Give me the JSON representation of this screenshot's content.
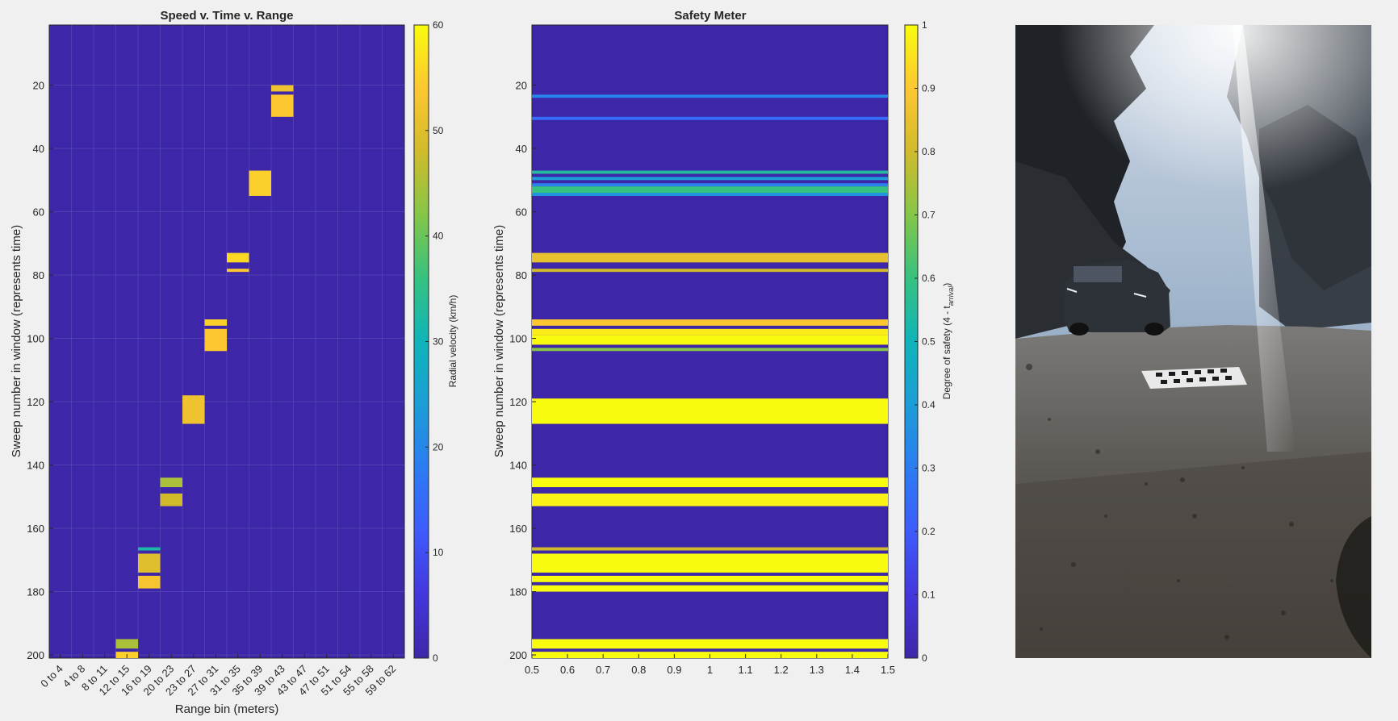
{
  "chart_data": [
    {
      "type": "heatmap",
      "title": "Speed v. Time v. Range",
      "xlabel": "Range bin (meters)",
      "ylabel": "Sweep number in window (represents time)",
      "x_categories": [
        "0 to 4",
        "4 to 8",
        "8 to 11",
        "12 to 15",
        "16 to 19",
        "20 to 23",
        "23 to 27",
        "27 to 31",
        "31 to 35",
        "35 to 39",
        "39 to 43",
        "43 to 47",
        "47 to 51",
        "51 to 54",
        "55 to 58",
        "59 to 62"
      ],
      "ylim": [
        1,
        201
      ],
      "y_ticks": [
        20,
        40,
        60,
        80,
        100,
        120,
        140,
        160,
        180,
        200
      ],
      "y_direction": "reversed",
      "grid": true,
      "colorbar": {
        "label": "Radial velocity (km/h)",
        "range": [
          0,
          60
        ],
        "ticks": [
          0,
          10,
          20,
          30,
          40,
          50,
          60
        ]
      },
      "background_value": 0,
      "cells": [
        {
          "bin": "39 to 43",
          "sweeps": [
            20,
            22
          ],
          "value": 52
        },
        {
          "bin": "39 to 43",
          "sweeps": [
            23,
            30
          ],
          "value": 54
        },
        {
          "bin": "35 to 39",
          "sweeps": [
            47,
            55
          ],
          "value": 55
        },
        {
          "bin": "31 to 35",
          "sweeps": [
            73,
            76
          ],
          "value": 56
        },
        {
          "bin": "31 to 35",
          "sweeps": [
            78,
            79
          ],
          "value": 54
        },
        {
          "bin": "27 to 31",
          "sweeps": [
            94,
            96
          ],
          "value": 55
        },
        {
          "bin": "27 to 31",
          "sweeps": [
            97,
            104
          ],
          "value": 54
        },
        {
          "bin": "23 to 27",
          "sweeps": [
            118,
            127
          ],
          "value": 52
        },
        {
          "bin": "20 to 23",
          "sweeps": [
            144,
            147
          ],
          "value": 45
        },
        {
          "bin": "20 to 23",
          "sweeps": [
            149,
            153
          ],
          "value": 48
        },
        {
          "bin": "16 to 19",
          "sweeps": [
            166,
            167
          ],
          "value": 32
        },
        {
          "bin": "16 to 19",
          "sweeps": [
            168,
            174
          ],
          "value": 50
        },
        {
          "bin": "16 to 19",
          "sweeps": [
            175,
            179
          ],
          "value": 53
        },
        {
          "bin": "12 to 15",
          "sweeps": [
            195,
            198
          ],
          "value": 45
        },
        {
          "bin": "12 to 15",
          "sweeps": [
            199,
            201
          ],
          "value": 55
        }
      ]
    },
    {
      "type": "heatmap",
      "title": "Safety Meter",
      "xlabel": "",
      "ylabel": "Sweep number in window  (represents time)",
      "xlim": [
        0.5,
        1.5
      ],
      "x_ticks": [
        0.5,
        0.6,
        0.7,
        0.8,
        0.9,
        1,
        1.1,
        1.2,
        1.3,
        1.4,
        1.5
      ],
      "ylim": [
        1,
        201
      ],
      "y_ticks": [
        20,
        40,
        60,
        80,
        100,
        120,
        140,
        160,
        180,
        200
      ],
      "y_direction": "reversed",
      "colorbar": {
        "label": "Degree of safety (4 - t",
        "label_sub": "arrival",
        "label_end": ")",
        "range": [
          0,
          1
        ],
        "ticks": [
          0,
          0.1,
          0.2,
          0.3,
          0.4,
          0.5,
          0.6,
          0.7,
          0.8,
          0.9,
          1
        ]
      },
      "background_value": 0,
      "bands": [
        {
          "sweeps": [
            23,
            24
          ],
          "value": 0.33
        },
        {
          "sweeps": [
            30,
            31
          ],
          "value": 0.25
        },
        {
          "sweeps": [
            47,
            48
          ],
          "value": 0.55
        },
        {
          "sweeps": [
            49,
            50
          ],
          "value": 0.4
        },
        {
          "sweeps": [
            51,
            52
          ],
          "value": 0.32
        },
        {
          "sweeps": [
            52,
            54
          ],
          "value": 0.6
        },
        {
          "sweeps": [
            54,
            55
          ],
          "value": 0.38
        },
        {
          "sweeps": [
            73,
            76
          ],
          "value": 0.85
        },
        {
          "sweeps": [
            78,
            79
          ],
          "value": 0.8
        },
        {
          "sweeps": [
            94,
            96
          ],
          "value": 0.9
        },
        {
          "sweeps": [
            97,
            99
          ],
          "value": 0.97
        },
        {
          "sweeps": [
            99,
            102
          ],
          "value": 1
        },
        {
          "sweeps": [
            103,
            104
          ],
          "value": 0.7
        },
        {
          "sweeps": [
            119,
            127
          ],
          "value": 1
        },
        {
          "sweeps": [
            144,
            147
          ],
          "value": 1
        },
        {
          "sweeps": [
            149,
            153
          ],
          "value": 0.98
        },
        {
          "sweeps": [
            166,
            167
          ],
          "value": 0.8
        },
        {
          "sweeps": [
            168,
            174
          ],
          "value": 1
        },
        {
          "sweeps": [
            175,
            177
          ],
          "value": 1
        },
        {
          "sweeps": [
            178,
            180
          ],
          "value": 1
        },
        {
          "sweeps": [
            195,
            198
          ],
          "value": 1
        },
        {
          "sweeps": [
            199,
            201
          ],
          "value": 1
        }
      ]
    }
  ],
  "photo": {
    "description_icon": "street-scene-photo-icon"
  },
  "colors": {
    "background": "#f0f0f0",
    "parula_low": "#3e26a8",
    "parula_high": "#f9fb0e"
  }
}
